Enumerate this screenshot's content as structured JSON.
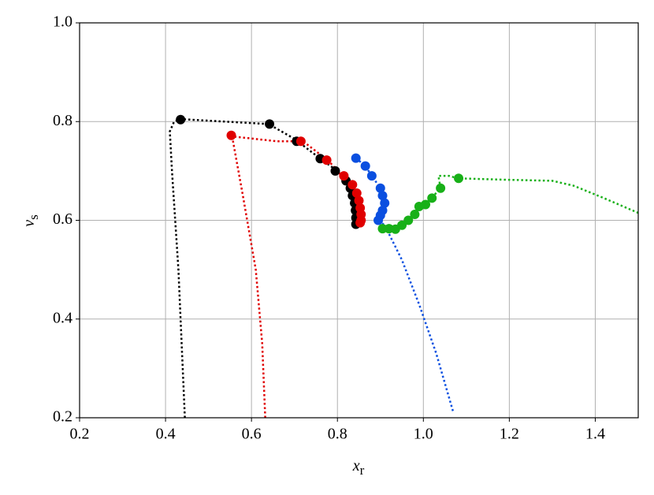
{
  "chart_data": {
    "type": "line",
    "x_label": {
      "text": "x",
      "sub": "r"
    },
    "y_label": {
      "text": "v",
      "sub": "s"
    },
    "xlim": [
      0.2,
      1.5
    ],
    "ylim": [
      0.2,
      1.0
    ],
    "xticks": [
      0.2,
      0.4,
      0.6,
      0.8,
      {
        "value": 1,
        "label": "1.0"
      },
      1.2,
      1.4
    ],
    "yticks": [
      0.2,
      0.4,
      0.6,
      0.8,
      {
        "value": 1,
        "label": "1.0"
      }
    ],
    "grid": true,
    "line_style": "dotted",
    "series": [
      {
        "color": "#000000",
        "x": [
          0.445,
          0.43,
          0.415,
          0.41,
          0.42,
          0.435,
          0.64,
          0.7,
          0.76,
          0.8,
          0.83,
          0.84,
          0.843
        ],
        "y": [
          0.2,
          0.5,
          0.7,
          0.78,
          0.8,
          0.805,
          0.795,
          0.765,
          0.725,
          0.7,
          0.67,
          0.64,
          0.592
        ],
        "marker_x": [
          0.435,
          0.642,
          0.705,
          0.76,
          0.795,
          0.82,
          0.83,
          0.835,
          0.84,
          0.842,
          0.843,
          0.843
        ],
        "marker_y": [
          0.804,
          0.795,
          0.76,
          0.725,
          0.7,
          0.68,
          0.665,
          0.65,
          0.635,
          0.62,
          0.605,
          0.592
        ]
      },
      {
        "color": "#e00000",
        "x": [
          0.632,
          0.625,
          0.61,
          0.58,
          0.555,
          0.66,
          0.72,
          0.78,
          0.83,
          0.85,
          0.855
        ],
        "y": [
          0.2,
          0.35,
          0.5,
          0.65,
          0.77,
          0.76,
          0.76,
          0.72,
          0.67,
          0.63,
          0.595
        ],
        "marker_x": [
          0.553,
          0.715,
          0.775,
          0.815,
          0.835,
          0.845,
          0.85,
          0.853,
          0.855,
          0.855,
          0.853
        ],
        "marker_y": [
          0.772,
          0.76,
          0.722,
          0.69,
          0.672,
          0.655,
          0.64,
          0.625,
          0.612,
          0.6,
          0.595
        ]
      },
      {
        "color": "#0a4fe0",
        "x": [
          0.843,
          0.865,
          0.88,
          0.9,
          0.91,
          0.905,
          0.895,
          0.91,
          0.95,
          0.99,
          1.03,
          1.07
        ],
        "y": [
          0.726,
          0.71,
          0.69,
          0.665,
          0.635,
          0.62,
          0.6,
          0.59,
          0.52,
          0.43,
          0.33,
          0.21
        ],
        "marker_x": [
          0.843,
          0.865,
          0.88,
          0.9,
          0.905,
          0.91,
          0.905,
          0.9,
          0.895
        ],
        "marker_y": [
          0.726,
          0.71,
          0.69,
          0.665,
          0.65,
          0.635,
          0.62,
          0.61,
          0.6
        ]
      },
      {
        "color": "#18b018",
        "x": [
          0.895,
          0.92,
          0.95,
          0.98,
          1.005,
          1.04,
          1.035,
          1.06,
          1.08,
          1.2,
          1.3,
          1.35,
          1.42,
          1.5
        ],
        "y": [
          0.582,
          0.583,
          0.59,
          0.612,
          0.632,
          0.665,
          0.69,
          0.69,
          0.685,
          0.682,
          0.68,
          0.67,
          0.645,
          0.615
        ],
        "marker_x": [
          0.905,
          0.92,
          0.935,
          0.95,
          0.965,
          0.98,
          0.99,
          1.005,
          1.02,
          1.04,
          1.082
        ],
        "marker_y": [
          0.583,
          0.583,
          0.582,
          0.59,
          0.6,
          0.612,
          0.628,
          0.632,
          0.645,
          0.665,
          0.685
        ]
      }
    ]
  }
}
